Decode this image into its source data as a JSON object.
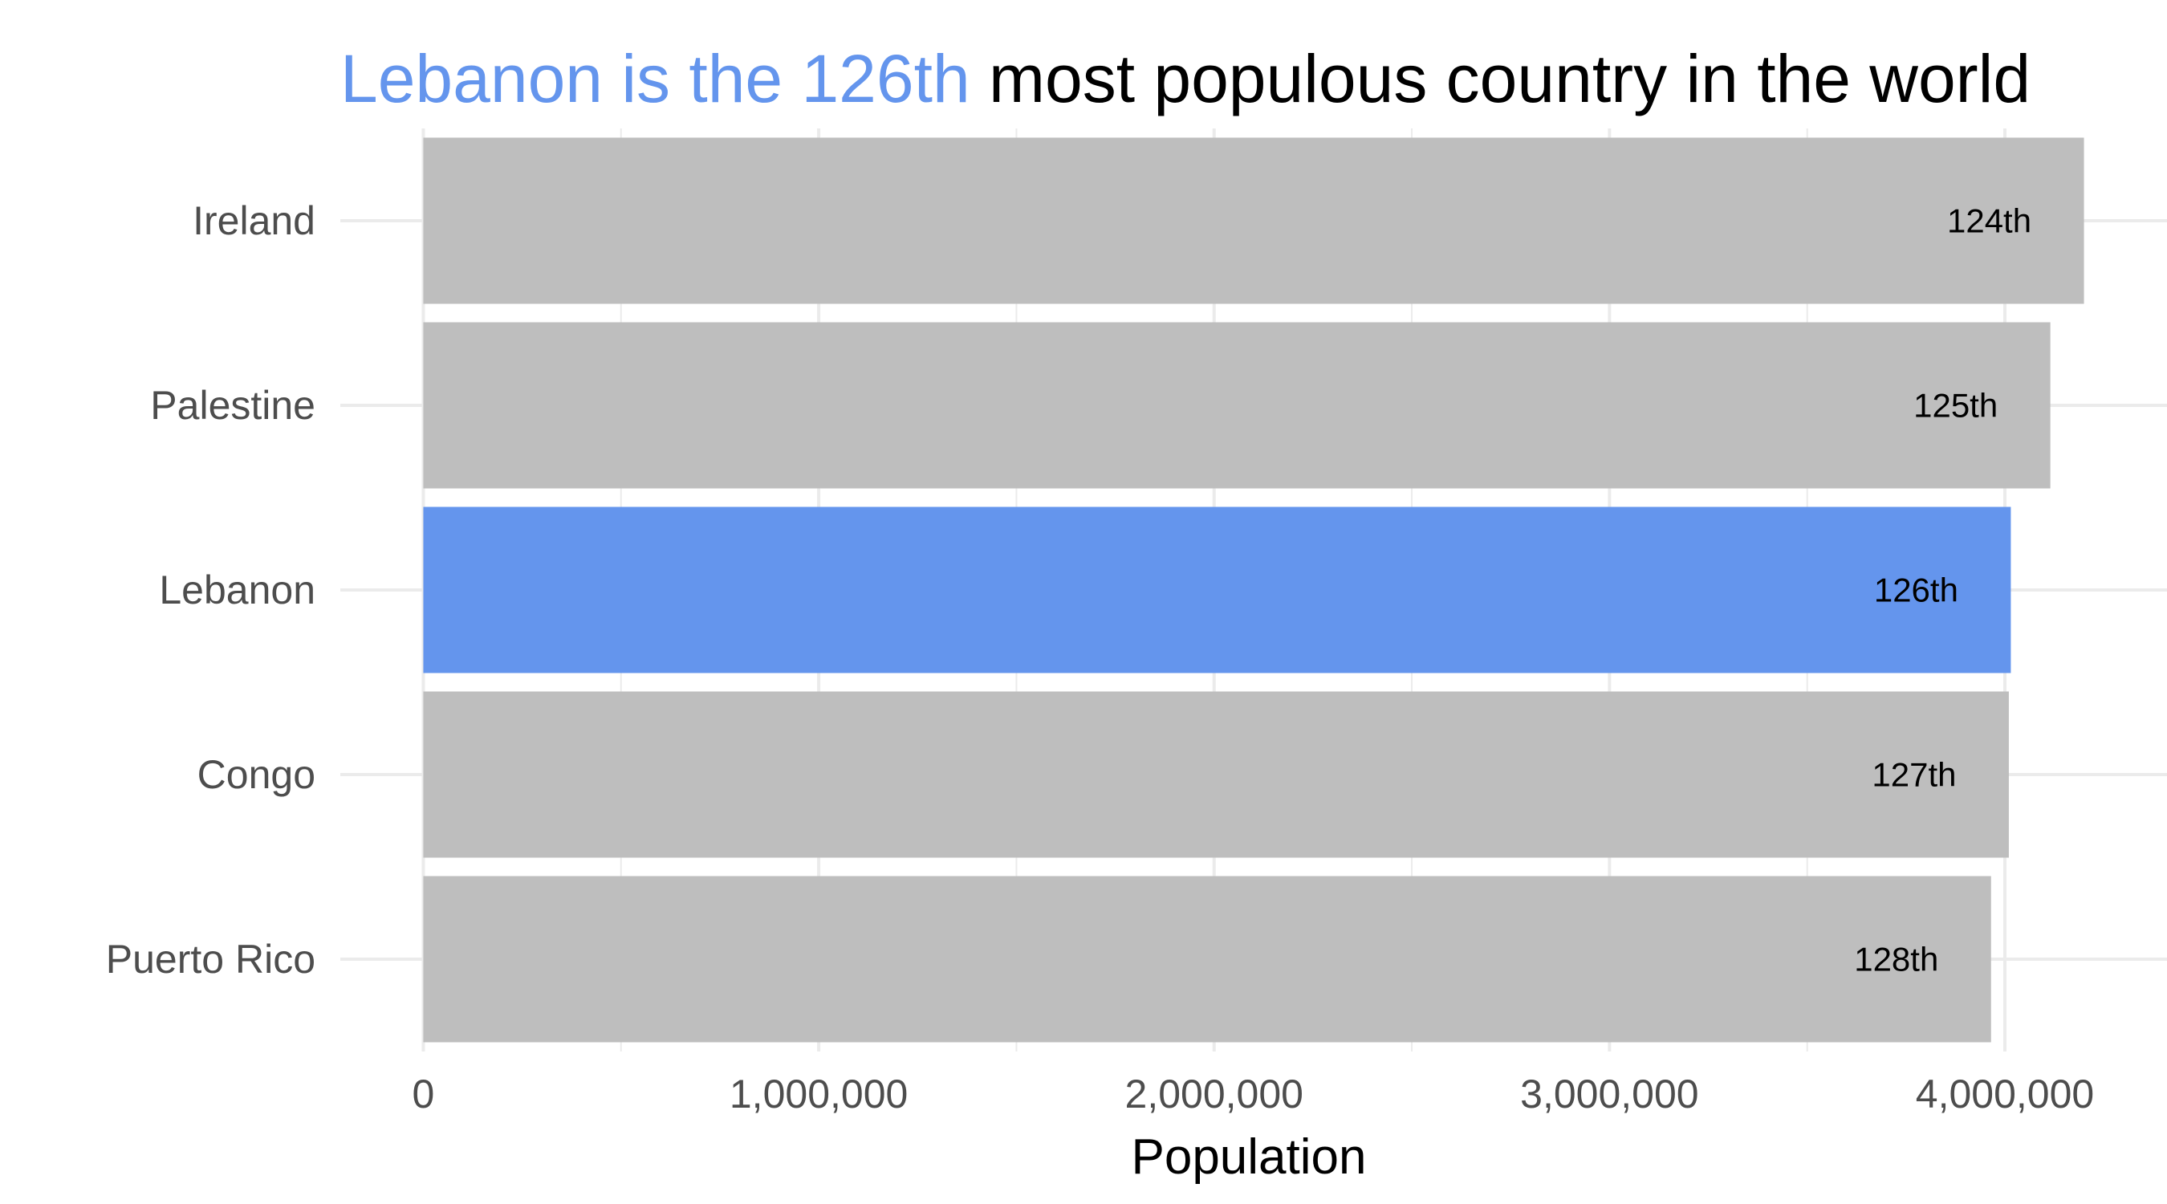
{
  "chart_data": {
    "type": "bar",
    "orientation": "horizontal",
    "title": {
      "highlight": "Lebanon is the 126th",
      "rest": " most populous country in the world"
    },
    "categories": [
      "Ireland",
      "Palestine",
      "Lebanon",
      "Congo",
      "Puerto Rico"
    ],
    "values": [
      4200000,
      4115000,
      4015000,
      4010000,
      3965000
    ],
    "rank_labels": [
      "124th",
      "125th",
      "126th",
      "127th",
      "128th"
    ],
    "highlight_category": "Lebanon",
    "xlabel": "Population",
    "ylabel": "",
    "xlim": [
      -210000,
      4410000
    ],
    "x_ticks": [
      0,
      1000000,
      2000000,
      3000000,
      4000000
    ],
    "x_tick_labels": [
      "0",
      "1,000,000",
      "2,000,000",
      "3,000,000",
      "4,000,000"
    ],
    "grid": true,
    "legend": "none"
  },
  "colors": {
    "highlight": "#6495ed",
    "bar": "#bebebe",
    "grid": "#ebebeb",
    "tick_text": "#4d4d4d",
    "label_text": "#000000"
  }
}
